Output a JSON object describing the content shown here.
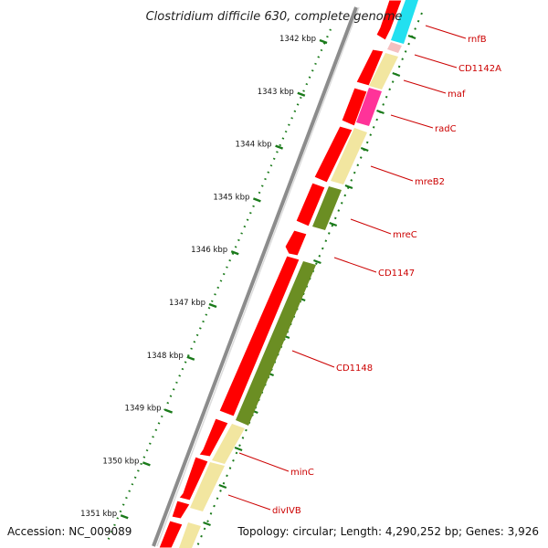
{
  "title": "Clostridium difficile 630, complete genome",
  "accession": "Accession: NC_009089",
  "summary": "Topology: circular; Length: 4,290,252 bp; Genes: 3,926",
  "ticks": [
    "1342 kbp",
    "1343 kbp",
    "1344 kbp",
    "1345 kbp",
    "1346 kbp",
    "1347 kbp",
    "1348 kbp",
    "1349 kbp",
    "1350 kbp",
    "1351 kbp"
  ],
  "genes": [
    {
      "name": "rnfB",
      "strand": "forward",
      "category_color": "#22e0f0"
    },
    {
      "name": "CD1142A",
      "strand": "forward",
      "category_color": "#f5c0c0"
    },
    {
      "name": "maf",
      "strand": "forward",
      "category_color": "#f2e6a0"
    },
    {
      "name": "radC",
      "strand": "forward",
      "category_color": "#ff3399"
    },
    {
      "name": "mreB2",
      "strand": "forward",
      "category_color": "#f2e6a0"
    },
    {
      "name": "mreC",
      "strand": "forward",
      "category_color": "#6b8e23"
    },
    {
      "name": "CD1147",
      "strand": "forward",
      "category_color": "#ffffff"
    },
    {
      "name": "CD1148",
      "strand": "forward",
      "category_color": "#6b8e23"
    },
    {
      "name": "minC",
      "strand": "forward",
      "category_color": "#f2e6a0"
    },
    {
      "name": "divIVB",
      "strand": "forward",
      "category_color": "#f2e6a0"
    }
  ],
  "colors": {
    "cds": "#ff0000",
    "label": "#cc0000",
    "backbone": "#8c8c8c",
    "tick": "#1a7a1a"
  }
}
